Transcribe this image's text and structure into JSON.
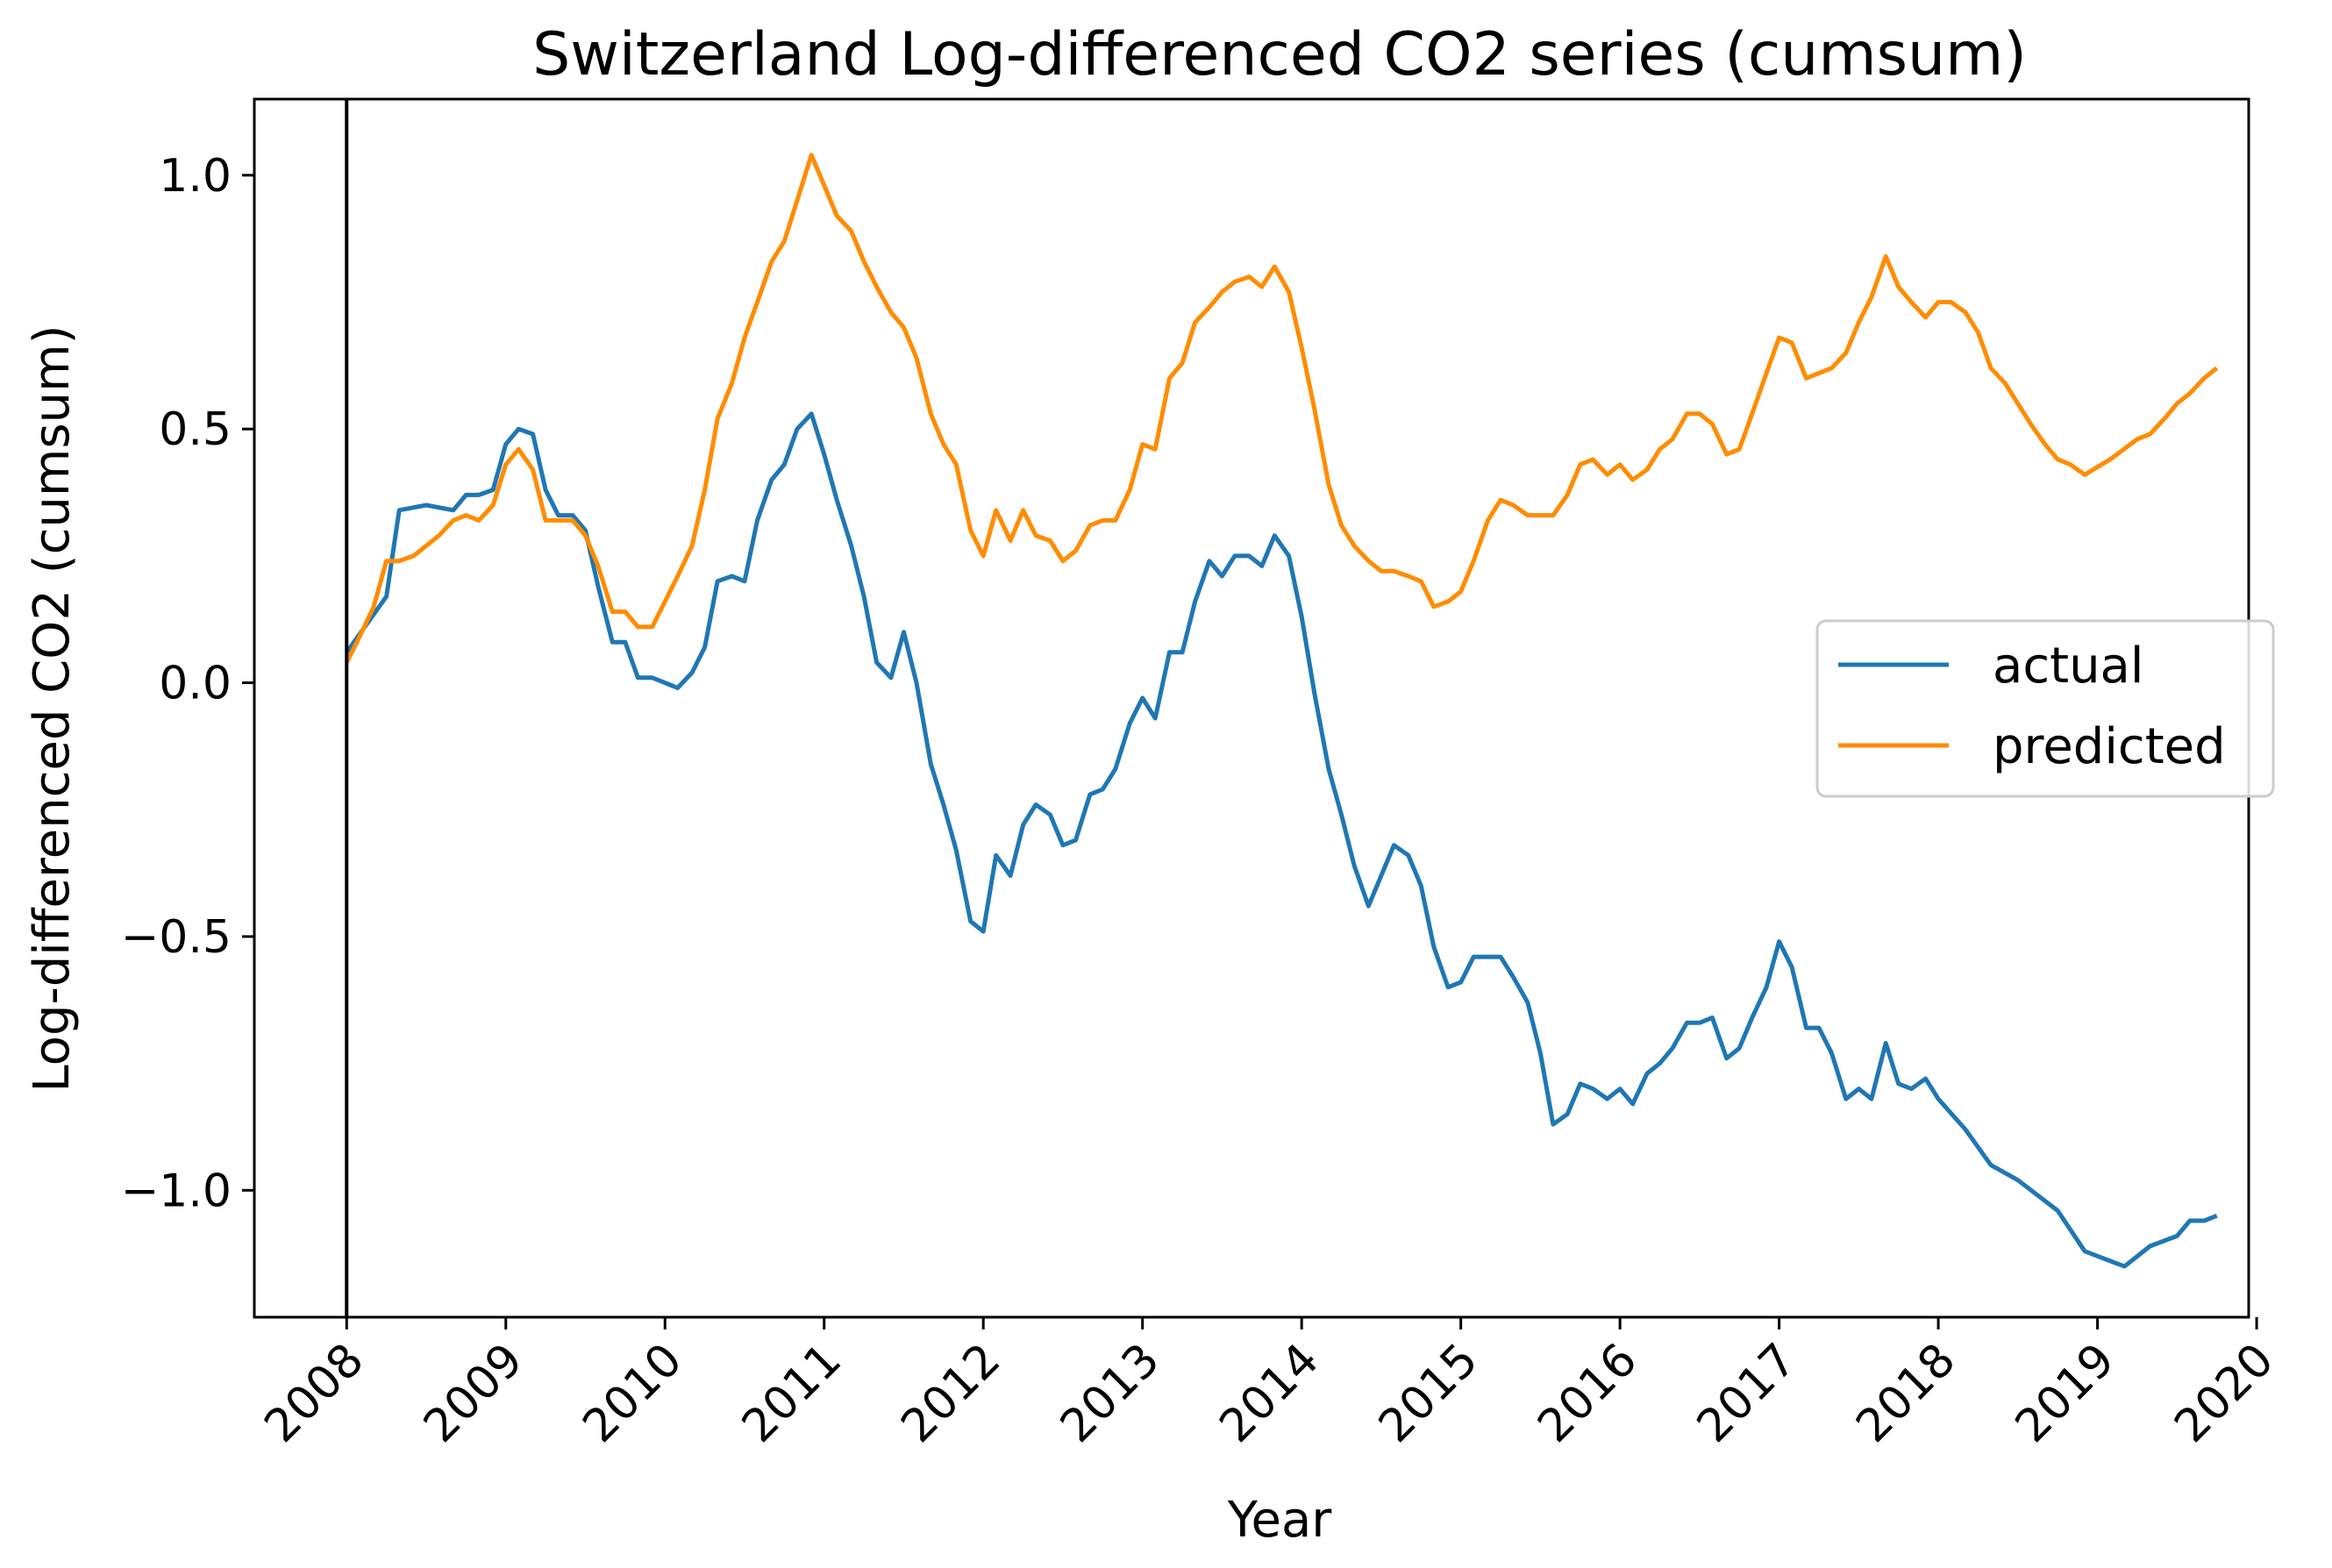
{
  "chart_data": {
    "type": "line",
    "title": "Switzerland Log-differenced CO2 series (cumsum)",
    "xlabel": "Year",
    "ylabel": "Log-differenced CO2 (cumsum)",
    "xlim": [
      2007.42,
      2019.95
    ],
    "ylim": [
      -1.25,
      1.15
    ],
    "x_ticks": [
      "2008",
      "2009",
      "2010",
      "2011",
      "2012",
      "2013",
      "2014",
      "2015",
      "2016",
      "2017",
      "2018",
      "2019",
      "2020"
    ],
    "y_ticks": [
      "1.0",
      "0.5",
      "0.0",
      "−0.5",
      "−1.0"
    ],
    "y_tick_values": [
      1.0,
      0.5,
      0.0,
      -0.5,
      -1.0
    ],
    "vline": 2008,
    "legend_position": "right",
    "series": [
      {
        "name": "actual",
        "color": "#1f77b4",
        "points": [
          [
            2008.0,
            0.06
          ],
          [
            2008.25,
            0.17
          ],
          [
            2008.33,
            0.34
          ],
          [
            2008.5,
            0.35
          ],
          [
            2008.67,
            0.34
          ],
          [
            2008.75,
            0.37
          ],
          [
            2008.83,
            0.37
          ],
          [
            2008.92,
            0.38
          ],
          [
            2009.0,
            0.47
          ],
          [
            2009.08,
            0.5
          ],
          [
            2009.17,
            0.49
          ],
          [
            2009.25,
            0.38
          ],
          [
            2009.33,
            0.33
          ],
          [
            2009.42,
            0.33
          ],
          [
            2009.5,
            0.3
          ],
          [
            2009.58,
            0.19
          ],
          [
            2009.67,
            0.08
          ],
          [
            2009.75,
            0.08
          ],
          [
            2009.83,
            0.01
          ],
          [
            2009.92,
            0.01
          ],
          [
            2010.0,
            0.0
          ],
          [
            2010.08,
            -0.01
          ],
          [
            2010.17,
            0.02
          ],
          [
            2010.25,
            0.07
          ],
          [
            2010.33,
            0.2
          ],
          [
            2010.42,
            0.21
          ],
          [
            2010.5,
            0.2
          ],
          [
            2010.58,
            0.32
          ],
          [
            2010.67,
            0.4
          ],
          [
            2010.75,
            0.43
          ],
          [
            2010.83,
            0.5
          ],
          [
            2010.92,
            0.53
          ],
          [
            2011.0,
            0.45
          ],
          [
            2011.08,
            0.36
          ],
          [
            2011.17,
            0.27
          ],
          [
            2011.25,
            0.17
          ],
          [
            2011.33,
            0.04
          ],
          [
            2011.42,
            0.01
          ],
          [
            2011.5,
            0.1
          ],
          [
            2011.58,
            0.0
          ],
          [
            2011.67,
            -0.16
          ],
          [
            2011.75,
            -0.24
          ],
          [
            2011.83,
            -0.33
          ],
          [
            2011.92,
            -0.47
          ],
          [
            2012.0,
            -0.49
          ],
          [
            2012.08,
            -0.34
          ],
          [
            2012.17,
            -0.38
          ],
          [
            2012.25,
            -0.28
          ],
          [
            2012.33,
            -0.24
          ],
          [
            2012.42,
            -0.26
          ],
          [
            2012.5,
            -0.32
          ],
          [
            2012.58,
            -0.31
          ],
          [
            2012.67,
            -0.22
          ],
          [
            2012.75,
            -0.21
          ],
          [
            2012.83,
            -0.17
          ],
          [
            2012.92,
            -0.08
          ],
          [
            2013.0,
            -0.03
          ],
          [
            2013.08,
            -0.07
          ],
          [
            2013.17,
            0.06
          ],
          [
            2013.25,
            0.06
          ],
          [
            2013.33,
            0.16
          ],
          [
            2013.42,
            0.24
          ],
          [
            2013.5,
            0.21
          ],
          [
            2013.58,
            0.25
          ],
          [
            2013.67,
            0.25
          ],
          [
            2013.75,
            0.23
          ],
          [
            2013.83,
            0.29
          ],
          [
            2013.92,
            0.25
          ],
          [
            2014.0,
            0.13
          ],
          [
            2014.08,
            -0.02
          ],
          [
            2014.17,
            -0.17
          ],
          [
            2014.25,
            -0.26
          ],
          [
            2014.33,
            -0.36
          ],
          [
            2014.42,
            -0.44
          ],
          [
            2014.5,
            -0.38
          ],
          [
            2014.58,
            -0.32
          ],
          [
            2014.67,
            -0.34
          ],
          [
            2014.75,
            -0.4
          ],
          [
            2014.83,
            -0.52
          ],
          [
            2014.92,
            -0.6
          ],
          [
            2015.0,
            -0.59
          ],
          [
            2015.08,
            -0.54
          ],
          [
            2015.17,
            -0.54
          ],
          [
            2015.25,
            -0.54
          ],
          [
            2015.33,
            -0.58
          ],
          [
            2015.42,
            -0.63
          ],
          [
            2015.5,
            -0.73
          ],
          [
            2015.58,
            -0.87
          ],
          [
            2015.67,
            -0.85
          ],
          [
            2015.75,
            -0.79
          ],
          [
            2015.83,
            -0.8
          ],
          [
            2015.92,
            -0.82
          ],
          [
            2016.0,
            -0.8
          ],
          [
            2016.08,
            -0.83
          ],
          [
            2016.17,
            -0.77
          ],
          [
            2016.25,
            -0.75
          ],
          [
            2016.33,
            -0.72
          ],
          [
            2016.42,
            -0.67
          ],
          [
            2016.5,
            -0.67
          ],
          [
            2016.58,
            -0.66
          ],
          [
            2016.67,
            -0.74
          ],
          [
            2016.75,
            -0.72
          ],
          [
            2016.83,
            -0.66
          ],
          [
            2016.92,
            -0.6
          ],
          [
            2017.0,
            -0.51
          ],
          [
            2017.08,
            -0.56
          ],
          [
            2017.17,
            -0.68
          ],
          [
            2017.25,
            -0.68
          ],
          [
            2017.33,
            -0.73
          ],
          [
            2017.42,
            -0.82
          ],
          [
            2017.5,
            -0.8
          ],
          [
            2017.58,
            -0.82
          ],
          [
            2017.67,
            -0.71
          ],
          [
            2017.75,
            -0.79
          ],
          [
            2017.83,
            -0.8
          ],
          [
            2017.92,
            -0.78
          ],
          [
            2018.0,
            -0.82
          ],
          [
            2018.17,
            -0.88
          ],
          [
            2018.33,
            -0.95
          ],
          [
            2018.5,
            -0.98
          ],
          [
            2018.75,
            -1.04
          ],
          [
            2018.92,
            -1.12
          ],
          [
            2019.17,
            -1.15
          ],
          [
            2019.33,
            -1.11
          ],
          [
            2019.5,
            -1.09
          ],
          [
            2019.58,
            -1.06
          ],
          [
            2019.67,
            -1.06
          ],
          [
            2019.75,
            -1.05
          ]
        ]
      },
      {
        "name": "predicted",
        "color": "#ff8c00",
        "points": [
          [
            2008.0,
            0.04
          ],
          [
            2008.08,
            0.09
          ],
          [
            2008.17,
            0.15
          ],
          [
            2008.25,
            0.24
          ],
          [
            2008.33,
            0.24
          ],
          [
            2008.42,
            0.25
          ],
          [
            2008.5,
            0.27
          ],
          [
            2008.58,
            0.29
          ],
          [
            2008.67,
            0.32
          ],
          [
            2008.75,
            0.33
          ],
          [
            2008.83,
            0.32
          ],
          [
            2008.92,
            0.35
          ],
          [
            2009.0,
            0.43
          ],
          [
            2009.08,
            0.46
          ],
          [
            2009.17,
            0.42
          ],
          [
            2009.25,
            0.32
          ],
          [
            2009.33,
            0.32
          ],
          [
            2009.42,
            0.32
          ],
          [
            2009.5,
            0.29
          ],
          [
            2009.58,
            0.23
          ],
          [
            2009.67,
            0.14
          ],
          [
            2009.75,
            0.14
          ],
          [
            2009.83,
            0.11
          ],
          [
            2009.92,
            0.11
          ],
          [
            2010.0,
            0.16
          ],
          [
            2010.08,
            0.21
          ],
          [
            2010.17,
            0.27
          ],
          [
            2010.25,
            0.38
          ],
          [
            2010.33,
            0.52
          ],
          [
            2010.42,
            0.59
          ],
          [
            2010.5,
            0.68
          ],
          [
            2010.58,
            0.75
          ],
          [
            2010.67,
            0.83
          ],
          [
            2010.75,
            0.87
          ],
          [
            2010.83,
            0.95
          ],
          [
            2010.92,
            1.04
          ],
          [
            2011.0,
            0.98
          ],
          [
            2011.08,
            0.92
          ],
          [
            2011.17,
            0.89
          ],
          [
            2011.25,
            0.83
          ],
          [
            2011.33,
            0.78
          ],
          [
            2011.42,
            0.73
          ],
          [
            2011.5,
            0.7
          ],
          [
            2011.58,
            0.64
          ],
          [
            2011.67,
            0.53
          ],
          [
            2011.75,
            0.47
          ],
          [
            2011.83,
            0.43
          ],
          [
            2011.92,
            0.3
          ],
          [
            2012.0,
            0.25
          ],
          [
            2012.08,
            0.34
          ],
          [
            2012.17,
            0.28
          ],
          [
            2012.25,
            0.34
          ],
          [
            2012.33,
            0.29
          ],
          [
            2012.42,
            0.28
          ],
          [
            2012.5,
            0.24
          ],
          [
            2012.58,
            0.26
          ],
          [
            2012.67,
            0.31
          ],
          [
            2012.75,
            0.32
          ],
          [
            2012.83,
            0.32
          ],
          [
            2012.92,
            0.38
          ],
          [
            2013.0,
            0.47
          ],
          [
            2013.08,
            0.46
          ],
          [
            2013.17,
            0.6
          ],
          [
            2013.25,
            0.63
          ],
          [
            2013.33,
            0.71
          ],
          [
            2013.42,
            0.74
          ],
          [
            2013.5,
            0.77
          ],
          [
            2013.58,
            0.79
          ],
          [
            2013.67,
            0.8
          ],
          [
            2013.75,
            0.78
          ],
          [
            2013.83,
            0.82
          ],
          [
            2013.92,
            0.77
          ],
          [
            2014.0,
            0.66
          ],
          [
            2014.08,
            0.54
          ],
          [
            2014.17,
            0.39
          ],
          [
            2014.25,
            0.31
          ],
          [
            2014.33,
            0.27
          ],
          [
            2014.42,
            0.24
          ],
          [
            2014.5,
            0.22
          ],
          [
            2014.58,
            0.22
          ],
          [
            2014.67,
            0.21
          ],
          [
            2014.75,
            0.2
          ],
          [
            2014.83,
            0.15
          ],
          [
            2014.92,
            0.16
          ],
          [
            2015.0,
            0.18
          ],
          [
            2015.08,
            0.24
          ],
          [
            2015.17,
            0.32
          ],
          [
            2015.25,
            0.36
          ],
          [
            2015.33,
            0.35
          ],
          [
            2015.42,
            0.33
          ],
          [
            2015.5,
            0.33
          ],
          [
            2015.58,
            0.33
          ],
          [
            2015.67,
            0.37
          ],
          [
            2015.75,
            0.43
          ],
          [
            2015.83,
            0.44
          ],
          [
            2015.92,
            0.41
          ],
          [
            2016.0,
            0.43
          ],
          [
            2016.08,
            0.4
          ],
          [
            2016.17,
            0.42
          ],
          [
            2016.25,
            0.46
          ],
          [
            2016.33,
            0.48
          ],
          [
            2016.42,
            0.53
          ],
          [
            2016.5,
            0.53
          ],
          [
            2016.58,
            0.51
          ],
          [
            2016.67,
            0.45
          ],
          [
            2016.75,
            0.46
          ],
          [
            2016.83,
            0.53
          ],
          [
            2016.92,
            0.61
          ],
          [
            2017.0,
            0.68
          ],
          [
            2017.08,
            0.67
          ],
          [
            2017.17,
            0.6
          ],
          [
            2017.25,
            0.61
          ],
          [
            2017.33,
            0.62
          ],
          [
            2017.42,
            0.65
          ],
          [
            2017.5,
            0.71
          ],
          [
            2017.58,
            0.76
          ],
          [
            2017.67,
            0.84
          ],
          [
            2017.75,
            0.78
          ],
          [
            2017.83,
            0.75
          ],
          [
            2017.92,
            0.72
          ],
          [
            2018.0,
            0.75
          ],
          [
            2018.08,
            0.75
          ],
          [
            2018.17,
            0.73
          ],
          [
            2018.25,
            0.69
          ],
          [
            2018.33,
            0.62
          ],
          [
            2018.42,
            0.59
          ],
          [
            2018.5,
            0.55
          ],
          [
            2018.58,
            0.51
          ],
          [
            2018.67,
            0.47
          ],
          [
            2018.75,
            0.44
          ],
          [
            2018.83,
            0.43
          ],
          [
            2018.92,
            0.41
          ],
          [
            2019.08,
            0.44
          ],
          [
            2019.25,
            0.48
          ],
          [
            2019.33,
            0.49
          ],
          [
            2019.42,
            0.52
          ],
          [
            2019.5,
            0.55
          ],
          [
            2019.58,
            0.57
          ],
          [
            2019.67,
            0.6
          ],
          [
            2019.75,
            0.62
          ]
        ]
      }
    ]
  }
}
